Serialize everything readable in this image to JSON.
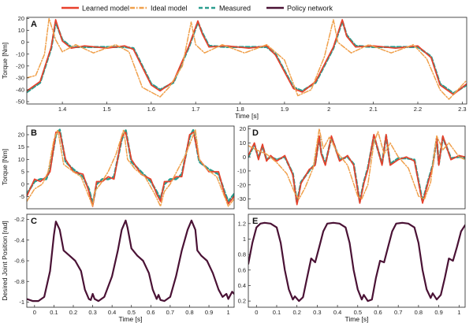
{
  "legend": {
    "placement": "top",
    "entries": [
      {
        "label": "Learned model",
        "color": "#e8402b",
        "dash": "solid"
      },
      {
        "label": "Ideal model",
        "color": "#f0a04b",
        "dash": "dashdot"
      },
      {
        "label": "Measured",
        "color": "#2a9d8f",
        "dash": "dashed"
      },
      {
        "label": "Policy network",
        "color": "#4a1235",
        "dash": "solid"
      }
    ]
  },
  "chart_data": [
    {
      "panel": "A",
      "type": "line",
      "xlabel": "Time [s]",
      "ylabel": "Torque [Nm]",
      "xlim": [
        1.32,
        2.31
      ],
      "ylim": [
        -52,
        21
      ],
      "xticks": [
        1.4,
        1.5,
        1.6,
        1.7,
        1.8,
        1.9,
        2.0,
        2.1,
        2.2,
        2.3
      ],
      "yticks": [
        20,
        10,
        0,
        -10,
        -20,
        -30,
        -40,
        -50
      ],
      "grid": false,
      "series": [
        {
          "name": "Measured",
          "x": [
            1.32,
            1.35,
            1.375,
            1.385,
            1.4,
            1.42,
            1.45,
            1.5,
            1.54,
            1.56,
            1.6,
            1.62,
            1.65,
            1.685,
            1.705,
            1.715,
            1.73,
            1.77,
            1.82,
            1.86,
            1.88,
            1.92,
            1.94,
            1.97,
            2.01,
            2.03,
            2.04,
            2.06,
            2.1,
            2.15,
            2.2,
            2.23,
            2.25,
            2.28,
            2.31
          ],
          "y": [
            -42,
            -34,
            -5,
            17,
            2,
            -4,
            -4,
            -4,
            -4,
            -5,
            -35,
            -40,
            -34,
            -4,
            17,
            8,
            -3,
            -4,
            -4,
            -4,
            -10,
            -38,
            -41,
            -34,
            -5,
            18,
            6,
            -3,
            -4,
            -4,
            -4,
            -12,
            -35,
            -43,
            -36
          ]
        },
        {
          "name": "Learned model",
          "x": [
            1.32,
            1.35,
            1.375,
            1.385,
            1.4,
            1.42,
            1.45,
            1.5,
            1.54,
            1.56,
            1.6,
            1.62,
            1.65,
            1.685,
            1.705,
            1.715,
            1.73,
            1.77,
            1.82,
            1.86,
            1.88,
            1.92,
            1.94,
            1.97,
            2.01,
            2.03,
            2.04,
            2.06,
            2.1,
            2.15,
            2.2,
            2.23,
            2.25,
            2.28,
            2.31
          ],
          "y": [
            -41,
            -33,
            -4,
            19,
            1,
            -5,
            -3,
            -5,
            -3,
            -6,
            -36,
            -41,
            -33,
            -3,
            18,
            7,
            -4,
            -3,
            -5,
            -3,
            -11,
            -39,
            -42,
            -33,
            -4,
            19,
            5,
            -4,
            -3,
            -5,
            -3,
            -13,
            -36,
            -44,
            -35
          ]
        },
        {
          "name": "Ideal model",
          "x": [
            1.32,
            1.34,
            1.36,
            1.37,
            1.385,
            1.4,
            1.43,
            1.47,
            1.52,
            1.55,
            1.58,
            1.62,
            1.64,
            1.67,
            1.69,
            1.7,
            1.72,
            1.76,
            1.81,
            1.86,
            1.9,
            1.93,
            1.96,
            1.99,
            2.01,
            2.02,
            2.05,
            2.09,
            2.14,
            2.19,
            2.22,
            2.25,
            2.27,
            2.31
          ],
          "y": [
            -30,
            -28,
            -10,
            20,
            2,
            -8,
            -2,
            -9,
            -2,
            -8,
            -38,
            -46,
            -38,
            -20,
            17,
            -2,
            -9,
            -2,
            -9,
            -2,
            -15,
            -45,
            -40,
            -12,
            19,
            0,
            -9,
            -2,
            -9,
            -2,
            -14,
            -40,
            -48,
            -32
          ]
        }
      ]
    },
    {
      "panel": "B",
      "type": "line",
      "xlabel": "",
      "ylabel": "Torque [Nm]",
      "xlim": [
        -0.04,
        1.03
      ],
      "ylim": [
        -10,
        23.5
      ],
      "xticks": [],
      "yticks": [
        20,
        15,
        10,
        5,
        0,
        -5
      ],
      "grid": false,
      "series": [
        {
          "name": "Measured",
          "x": [
            -0.04,
            0.0,
            0.03,
            0.06,
            0.08,
            0.11,
            0.13,
            0.16,
            0.2,
            0.25,
            0.28,
            0.3,
            0.32,
            0.35,
            0.38,
            0.41,
            0.45,
            0.47,
            0.5,
            0.55,
            0.6,
            0.63,
            0.65,
            0.67,
            0.7,
            0.73,
            0.76,
            0.8,
            0.82,
            0.85,
            0.9,
            0.95,
            0.98,
            1.0,
            1.03
          ],
          "y": [
            -4,
            1,
            2,
            2,
            6,
            20,
            22,
            9,
            6,
            3,
            -2,
            -8,
            0,
            2,
            2,
            3,
            18,
            22,
            9,
            5,
            1,
            -3,
            -6,
            0,
            2,
            2,
            4,
            19,
            22,
            9,
            6,
            4,
            -3,
            -7,
            -4
          ]
        },
        {
          "name": "Learned model",
          "x": [
            -0.04,
            0.0,
            0.03,
            0.06,
            0.08,
            0.11,
            0.13,
            0.16,
            0.2,
            0.25,
            0.28,
            0.3,
            0.32,
            0.35,
            0.38,
            0.41,
            0.45,
            0.47,
            0.5,
            0.55,
            0.6,
            0.63,
            0.65,
            0.67,
            0.7,
            0.73,
            0.76,
            0.8,
            0.82,
            0.85,
            0.9,
            0.95,
            0.98,
            1.0,
            1.03
          ],
          "y": [
            -5,
            2,
            1,
            3,
            5,
            21,
            21,
            10,
            5,
            4,
            -3,
            -9,
            1,
            1,
            3,
            2,
            19,
            21,
            10,
            4,
            2,
            -4,
            -7,
            1,
            1,
            3,
            3,
            20,
            21,
            10,
            5,
            5,
            -4,
            -8,
            -5
          ]
        },
        {
          "name": "Ideal model",
          "x": [
            -0.04,
            0.0,
            0.04,
            0.07,
            0.1,
            0.12,
            0.15,
            0.2,
            0.24,
            0.28,
            0.3,
            0.31,
            0.34,
            0.38,
            0.42,
            0.46,
            0.48,
            0.52,
            0.57,
            0.62,
            0.65,
            0.67,
            0.7,
            0.74,
            0.78,
            0.83,
            0.85,
            0.89,
            0.94,
            0.98,
            1.0,
            1.03
          ],
          "y": [
            -7,
            -2,
            0,
            5,
            18,
            22,
            8,
            5,
            3,
            -5,
            -9,
            -3,
            0,
            5,
            12,
            22,
            10,
            6,
            3,
            -4,
            -9,
            -3,
            0,
            6,
            12,
            22,
            10,
            6,
            3,
            -5,
            -9,
            -6
          ]
        }
      ]
    },
    {
      "panel": "D",
      "type": "line",
      "xlabel": "",
      "ylabel": "",
      "xlim": [
        -0.04,
        1.03
      ],
      "ylim": [
        -37,
        22
      ],
      "xticks": [],
      "yticks": [
        20,
        10,
        0,
        -10,
        -20,
        -30
      ],
      "grid": false,
      "series": [
        {
          "name": "Measured",
          "x": [
            -0.04,
            -0.01,
            0.01,
            0.03,
            0.05,
            0.07,
            0.1,
            0.14,
            0.18,
            0.2,
            0.22,
            0.26,
            0.29,
            0.31,
            0.32,
            0.34,
            0.37,
            0.41,
            0.45,
            0.48,
            0.51,
            0.53,
            0.55,
            0.58,
            0.62,
            0.64,
            0.66,
            0.7,
            0.74,
            0.78,
            0.82,
            0.85,
            0.87,
            0.89,
            0.9,
            0.92,
            0.96,
            1.0,
            1.03
          ],
          "y": [
            0,
            9,
            -1,
            8,
            -2,
            0,
            -2,
            0,
            -12,
            -33,
            -18,
            -10,
            -5,
            14,
            3,
            -5,
            14,
            -2,
            0,
            -5,
            -32,
            -18,
            -8,
            15,
            -5,
            15,
            -5,
            -1,
            -1,
            -2,
            -32,
            -16,
            -6,
            13,
            -5,
            14,
            -1,
            0,
            -1
          ]
        },
        {
          "name": "Learned model",
          "x": [
            -0.04,
            -0.01,
            0.01,
            0.03,
            0.05,
            0.07,
            0.1,
            0.14,
            0.18,
            0.2,
            0.22,
            0.26,
            0.29,
            0.31,
            0.32,
            0.34,
            0.37,
            0.41,
            0.45,
            0.48,
            0.51,
            0.53,
            0.55,
            0.58,
            0.62,
            0.64,
            0.66,
            0.7,
            0.74,
            0.78,
            0.82,
            0.85,
            0.87,
            0.89,
            0.9,
            0.92,
            0.96,
            1.0,
            1.03
          ],
          "y": [
            1,
            10,
            -2,
            9,
            -3,
            1,
            -3,
            1,
            -13,
            -34,
            -19,
            -9,
            -6,
            15,
            2,
            -6,
            15,
            -3,
            1,
            -6,
            -33,
            -19,
            -9,
            16,
            -6,
            16,
            -6,
            -2,
            0,
            -3,
            -33,
            -17,
            -7,
            14,
            -6,
            15,
            -2,
            1,
            0
          ]
        },
        {
          "name": "Ideal model",
          "x": [
            -0.04,
            0.0,
            0.05,
            0.1,
            0.15,
            0.19,
            0.21,
            0.24,
            0.28,
            0.31,
            0.33,
            0.36,
            0.4,
            0.45,
            0.5,
            0.52,
            0.55,
            0.58,
            0.6,
            0.63,
            0.66,
            0.7,
            0.75,
            0.8,
            0.83,
            0.86,
            0.89,
            0.92,
            0.95,
            1.0,
            1.03
          ],
          "y": [
            8,
            5,
            2,
            -4,
            -12,
            -26,
            -30,
            -22,
            -8,
            20,
            6,
            14,
            3,
            -6,
            -28,
            -30,
            -20,
            10,
            18,
            2,
            10,
            0,
            -8,
            -28,
            -30,
            -18,
            15,
            5,
            10,
            0,
            -2
          ]
        }
      ]
    },
    {
      "panel": "C",
      "type": "line",
      "xlabel": "Time [s]",
      "ylabel": "Desired Joint Position [rad]",
      "xlim": [
        -0.04,
        1.03
      ],
      "ylim": [
        -1.05,
        -0.15
      ],
      "xticks": [
        0,
        0.1,
        0.2,
        0.3,
        0.4,
        0.5,
        0.6,
        0.7,
        0.8,
        0.9,
        1
      ],
      "yticks": [
        -0.2,
        -0.4,
        -0.6,
        -0.8,
        -1
      ],
      "grid": false,
      "series": [
        {
          "name": "Policy network",
          "x": [
            -0.04,
            -0.01,
            0.02,
            0.05,
            0.08,
            0.1,
            0.11,
            0.13,
            0.15,
            0.18,
            0.21,
            0.24,
            0.26,
            0.28,
            0.29,
            0.3,
            0.31,
            0.33,
            0.36,
            0.4,
            0.43,
            0.45,
            0.47,
            0.48,
            0.5,
            0.53,
            0.56,
            0.59,
            0.61,
            0.63,
            0.64,
            0.65,
            0.67,
            0.7,
            0.73,
            0.76,
            0.79,
            0.81,
            0.83,
            0.84,
            0.86,
            0.89,
            0.92,
            0.95,
            0.97,
            0.99,
            1.0,
            1.02,
            1.03
          ],
          "y": [
            -0.97,
            -0.99,
            -0.99,
            -0.95,
            -0.7,
            -0.35,
            -0.22,
            -0.3,
            -0.5,
            -0.55,
            -0.6,
            -0.7,
            -0.88,
            -0.97,
            -0.98,
            -0.92,
            -0.97,
            -0.99,
            -0.95,
            -0.75,
            -0.5,
            -0.3,
            -0.21,
            -0.28,
            -0.48,
            -0.55,
            -0.6,
            -0.72,
            -0.88,
            -0.97,
            -0.93,
            -0.98,
            -0.99,
            -0.95,
            -0.75,
            -0.5,
            -0.3,
            -0.21,
            -0.3,
            -0.5,
            -0.55,
            -0.6,
            -0.72,
            -0.88,
            -0.95,
            -0.92,
            -0.97,
            -0.9,
            -0.92
          ]
        }
      ]
    },
    {
      "panel": "E",
      "type": "line",
      "xlabel": "Time [s]",
      "ylabel": "",
      "xlim": [
        -0.04,
        1.03
      ],
      "ylim": [
        0.12,
        1.32
      ],
      "xticks": [
        0,
        0.1,
        0.2,
        0.3,
        0.4,
        0.5,
        0.6,
        0.7,
        0.8,
        0.9,
        1
      ],
      "yticks": [
        1.2,
        1,
        0.8,
        0.6,
        0.4,
        0.2
      ],
      "grid": false,
      "series": [
        {
          "name": "Policy network",
          "x": [
            -0.04,
            -0.02,
            0.0,
            0.02,
            0.04,
            0.07,
            0.1,
            0.12,
            0.14,
            0.16,
            0.18,
            0.19,
            0.21,
            0.23,
            0.25,
            0.27,
            0.29,
            0.31,
            0.33,
            0.35,
            0.38,
            0.41,
            0.44,
            0.46,
            0.48,
            0.5,
            0.52,
            0.53,
            0.55,
            0.57,
            0.59,
            0.61,
            0.63,
            0.65,
            0.67,
            0.69,
            0.72,
            0.75,
            0.78,
            0.8,
            0.82,
            0.84,
            0.86,
            0.87,
            0.89,
            0.91,
            0.93,
            0.95,
            0.97,
            0.99,
            1.01,
            1.03
          ],
          "y": [
            0.68,
            0.95,
            1.15,
            1.2,
            1.21,
            1.2,
            1.15,
            0.95,
            0.6,
            0.35,
            0.22,
            0.26,
            0.2,
            0.25,
            0.5,
            0.75,
            0.7,
            0.9,
            1.1,
            1.2,
            1.21,
            1.2,
            1.15,
            0.95,
            0.6,
            0.35,
            0.22,
            0.28,
            0.2,
            0.22,
            0.5,
            0.72,
            0.7,
            0.9,
            1.1,
            1.2,
            1.21,
            1.2,
            1.15,
            0.95,
            0.6,
            0.35,
            0.24,
            0.3,
            0.22,
            0.28,
            0.5,
            0.75,
            0.72,
            0.9,
            1.1,
            1.18
          ]
        }
      ]
    }
  ]
}
